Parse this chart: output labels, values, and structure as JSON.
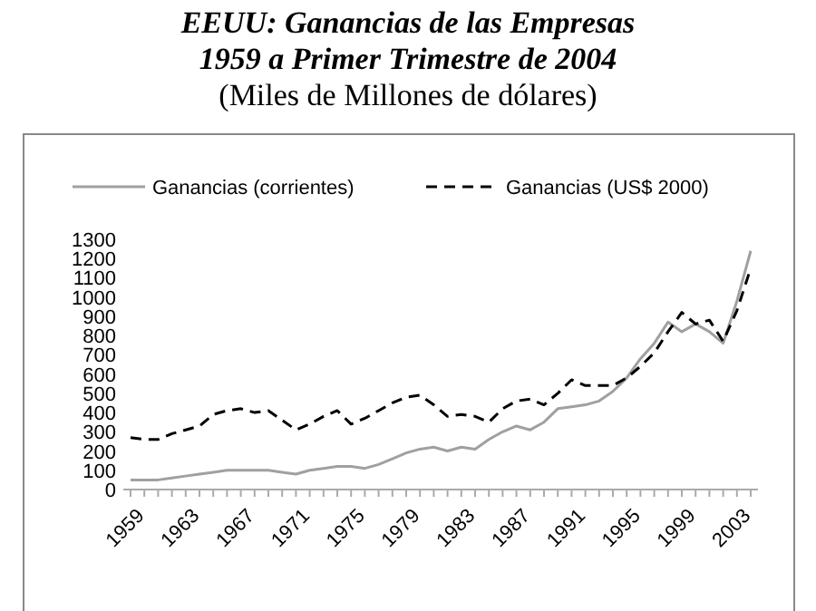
{
  "chart_data": {
    "type": "line",
    "title": "EEUU: Ganancias de las Empresas\n1959 a Primer Trimestre  de 2004",
    "subtitle": "(Miles de Millones de dólares)",
    "categories": [
      "1959",
      null,
      null,
      null,
      "1963",
      null,
      null,
      null,
      "1967",
      null,
      null,
      null,
      "1971",
      null,
      null,
      null,
      "1975",
      null,
      null,
      null,
      "1979",
      null,
      null,
      null,
      "1983",
      null,
      null,
      null,
      "1987",
      null,
      null,
      null,
      "1991",
      null,
      null,
      null,
      "1995",
      null,
      null,
      null,
      "1999",
      null,
      null,
      null,
      "2003",
      null
    ],
    "series": [
      {
        "name": "Ganancias (corrientes)",
        "color": "#a0a0a0",
        "line_style": "solid",
        "values": [
          50,
          50,
          50,
          60,
          70,
          80,
          90,
          100,
          100,
          100,
          100,
          90,
          80,
          100,
          110,
          120,
          120,
          110,
          130,
          160,
          190,
          210,
          220,
          200,
          220,
          210,
          260,
          300,
          330,
          310,
          350,
          420,
          430,
          440,
          460,
          510,
          580,
          680,
          760,
          870,
          820,
          860,
          820,
          760,
          980,
          1240
        ]
      },
      {
        "name": "Ganancias (US$ 2000)",
        "color": "#000000",
        "line_style": "dashed",
        "values": [
          270,
          260,
          260,
          290,
          310,
          330,
          390,
          410,
          420,
          400,
          410,
          360,
          310,
          340,
          380,
          410,
          340,
          370,
          410,
          450,
          480,
          490,
          440,
          380,
          390,
          380,
          350,
          420,
          460,
          470,
          440,
          500,
          570,
          540,
          540,
          540,
          580,
          640,
          710,
          820,
          920,
          860,
          880,
          770,
          930,
          1150
        ]
      }
    ],
    "ylim": [
      0,
      1300
    ],
    "yticks": [
      0,
      100,
      200,
      300,
      400,
      500,
      600,
      700,
      800,
      900,
      1000,
      1100,
      1200,
      1300
    ],
    "grid": false,
    "legend": "top",
    "marker": "none"
  }
}
